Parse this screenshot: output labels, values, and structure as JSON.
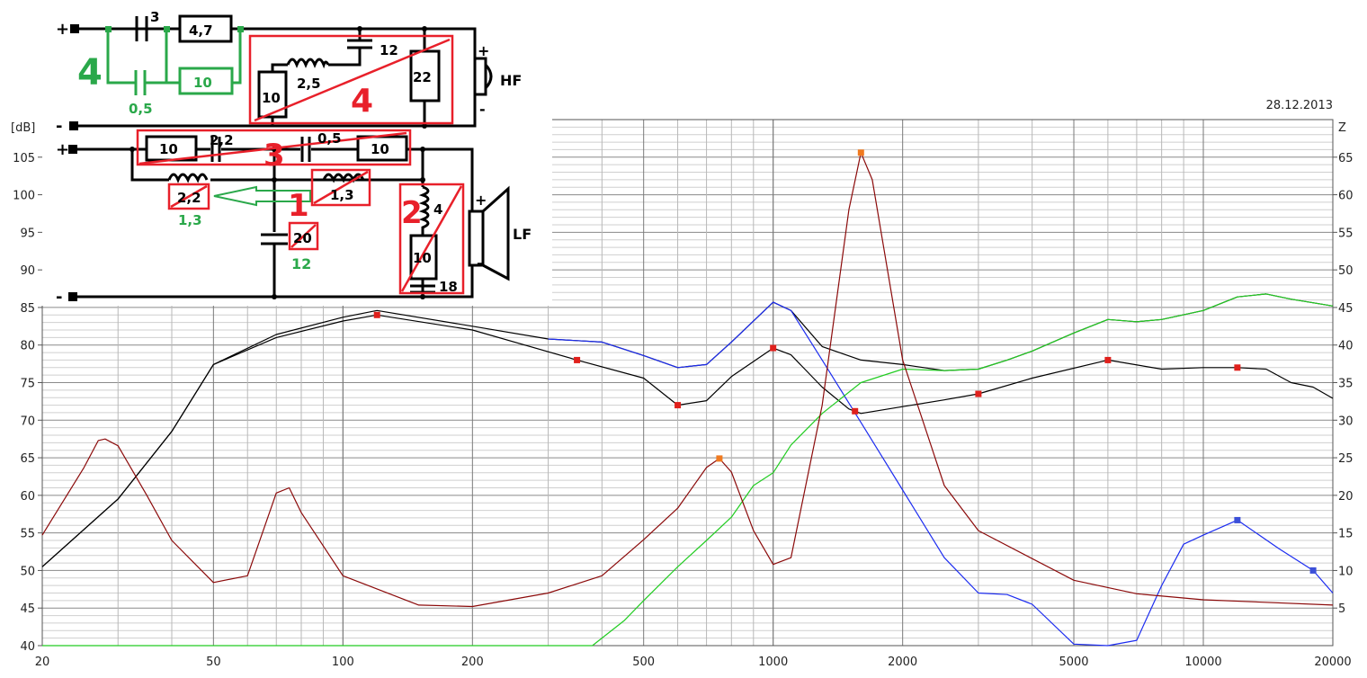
{
  "date": "28.12.2013",
  "chart_data": {
    "type": "line",
    "xscale": "log",
    "xlim": [
      20,
      20000
    ],
    "xticks": [
      20,
      50,
      100,
      200,
      500,
      1000,
      2000,
      5000,
      10000,
      20000
    ],
    "ylabel": "[dB]",
    "ylim": [
      40,
      110
    ],
    "yticks": [
      40,
      45,
      50,
      55,
      60,
      65,
      70,
      75,
      80,
      85,
      90,
      95,
      100,
      105
    ],
    "y2label": "Z",
    "y2lim": [
      0,
      70
    ],
    "y2ticks": [
      5,
      10,
      15,
      20,
      25,
      30,
      35,
      40,
      45,
      50,
      55,
      60,
      65
    ],
    "grid": true,
    "series": [
      {
        "color": "#000000",
        "axis": "left",
        "x": [
          20,
          30,
          40,
          50,
          70,
          100,
          120,
          200,
          300,
          400,
          500,
          600,
          700,
          800,
          1000,
          1100,
          1300,
          1600,
          2000,
          2500,
          3000,
          3500,
          4000,
          5000,
          6000,
          7000,
          8000,
          10000,
          12000,
          14000,
          16000,
          20000
        ],
        "y": [
          50.5,
          59.5,
          68.5,
          77.4,
          81.4,
          83.7,
          84.6,
          82.5,
          80.8,
          80.4,
          78.6,
          77,
          77.4,
          80.4,
          85.7,
          84.6,
          79.8,
          78,
          77.4,
          76.6,
          76.8,
          78,
          79.2,
          81.6,
          83.4,
          83.1,
          83.4,
          84.6,
          86.4,
          86.8,
          86.1,
          85.2
        ]
      },
      {
        "color": "#000000",
        "axis": "left",
        "x": [
          20,
          30,
          40,
          50,
          70,
          100,
          120,
          200,
          350,
          500,
          600,
          700,
          800,
          1000,
          1100,
          1300,
          1500,
          1600,
          2000,
          2500,
          3000,
          4000,
          6000,
          8000,
          10000,
          12000,
          14000,
          16000,
          18000,
          20000
        ],
        "y": [
          50.5,
          59.5,
          68.5,
          77.4,
          81,
          83.2,
          84,
          82,
          78,
          75.6,
          72,
          72.6,
          75.8,
          79.6,
          78.7,
          74.4,
          71.5,
          70.9,
          71.8,
          72.7,
          73.5,
          75.6,
          78,
          76.8,
          77,
          77,
          76.8,
          75,
          74.4,
          72.9
        ],
        "markers": {
          "color": "#e0201c",
          "x": [
            120,
            350,
            600,
            1000,
            1550,
            3000,
            6000,
            12000
          ]
        }
      },
      {
        "color": "#1c2cf0",
        "axis": "left",
        "x": [
          300,
          400,
          500,
          600,
          700,
          800,
          1000,
          1100,
          1300,
          1600,
          2000,
          2500,
          3000,
          3500,
          4000,
          5000,
          6000,
          7000,
          8000,
          9000,
          10000,
          12000,
          15000,
          18000,
          20000
        ],
        "y": [
          80.8,
          80.4,
          78.6,
          77,
          77.4,
          80.4,
          85.7,
          84.6,
          78,
          69.7,
          60.7,
          51.7,
          47,
          46.8,
          45.5,
          40.2,
          40,
          40.7,
          48,
          53.5,
          54.7,
          56.7,
          52.9,
          50,
          47
        ],
        "markers": {
          "color": "#3c50d8",
          "x": [
            12000,
            18000
          ]
        }
      },
      {
        "color": "#22cc22",
        "axis": "left",
        "x": [
          20,
          380,
          400,
          450,
          500,
          600,
          700,
          800,
          900,
          1000,
          1100,
          1300,
          1600,
          2000,
          2500,
          3000,
          3500,
          4000,
          5000,
          6000,
          7000,
          8000,
          10000,
          12000,
          14000,
          16000,
          20000
        ],
        "y": [
          40,
          40,
          41,
          43.3,
          46,
          50.5,
          54,
          57.1,
          61.3,
          63,
          66.7,
          70.9,
          75,
          76.8,
          76.6,
          76.8,
          78,
          79.2,
          81.6,
          83.4,
          83.1,
          83.4,
          84.6,
          86.4,
          86.8,
          86.1,
          85.2
        ]
      },
      {
        "color": "#8b0a0a",
        "axis": "right",
        "x": [
          20,
          25,
          27,
          28,
          30,
          35,
          40,
          50,
          60,
          70,
          75,
          80,
          100,
          150,
          200,
          300,
          400,
          500,
          600,
          700,
          750,
          800,
          900,
          1000,
          1100,
          1300,
          1500,
          1600,
          1700,
          2000,
          2500,
          3000,
          5000,
          7000,
          10000,
          20000
        ],
        "y": [
          14.7,
          23.7,
          27.3,
          27.5,
          26.6,
          20,
          14,
          8.4,
          9.3,
          20.3,
          21,
          17.7,
          9.3,
          5.4,
          5.2,
          7,
          9.3,
          14.1,
          18.3,
          23.7,
          24.9,
          23.1,
          15.3,
          10.8,
          11.7,
          32,
          58,
          65.6,
          62,
          38,
          21.3,
          15.3,
          8.7,
          6.9,
          6.1,
          5.4
        ],
        "markers": {
          "color": "#f07a20",
          "x": [
            750,
            1600
          ]
        }
      }
    ]
  },
  "schematic": {
    "labels": [
      "+",
      "-",
      "+",
      "-",
      "3",
      "4,7",
      "4",
      "0,5",
      "10",
      "12",
      "2,5",
      "10",
      "22",
      "4",
      "+",
      "-",
      "HF",
      "10",
      "2,2",
      "0,5",
      "10",
      "3",
      "2,2",
      "1,3",
      "1",
      "1,3",
      "20",
      "12",
      "2",
      "4",
      "10",
      "18",
      "+",
      "-",
      "LF"
    ],
    "colors": {
      "black": "#000000",
      "green": "#2aa84a",
      "red": "#e8202a"
    }
  }
}
